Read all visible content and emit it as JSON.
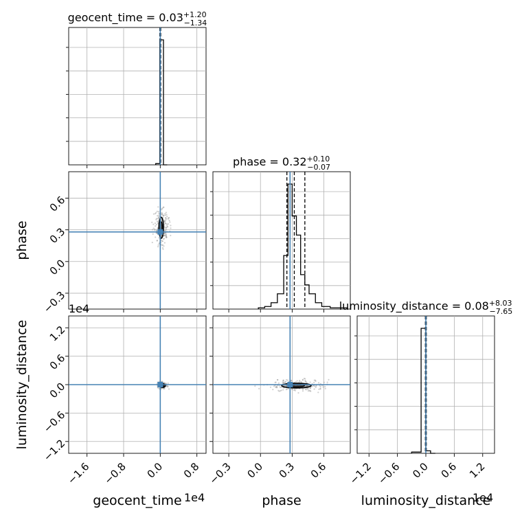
{
  "figure": {
    "type": "corner plot",
    "grid": true,
    "colors": {
      "truth": "#4682b4",
      "hist": "#000000",
      "grid": "#b0b0b0",
      "scatter": "#9a9a9a"
    }
  },
  "parameters": [
    {
      "name": "geocent_time",
      "label": "geocent_time",
      "title_value": "0.03",
      "err_plus": "+1.20",
      "err_minus": "−1.34",
      "offset": "1e4",
      "xlim": [
        -2.0,
        1.0
      ],
      "ticks": [
        "−1.6",
        "−0.8",
        "0.0",
        "0.8"
      ],
      "tick_values": [
        -1.6,
        -0.8,
        0.0,
        0.8
      ],
      "truth": 0.0
    },
    {
      "name": "phase",
      "label": "phase",
      "title_value": "0.32",
      "err_plus": "+0.10",
      "err_minus": "−0.07",
      "offset": "",
      "xlim": [
        -0.45,
        0.85
      ],
      "ticks": [
        "−0.3",
        "0.0",
        "0.3",
        "0.6"
      ],
      "tick_values": [
        -0.3,
        0.0,
        0.3,
        0.6
      ],
      "truth": 0.28
    },
    {
      "name": "luminosity_distance",
      "label": "luminosity_distance",
      "title_value": "0.08",
      "err_plus": "+8.03",
      "err_minus": "−7.65",
      "offset": "1e4",
      "xlim": [
        -1.45,
        1.45
      ],
      "ticks": [
        "−1.2",
        "−0.6",
        "0.0",
        "0.6",
        "1.2"
      ],
      "tick_values": [
        -1.2,
        -0.6,
        0.0,
        0.6,
        1.2
      ],
      "truth": 0.0
    }
  ],
  "chart_data": {
    "type": "histogram",
    "panels": [
      {
        "parameter": "geocent_time",
        "type": "histogram",
        "bin_edges": [
          -0.1,
          -0.01,
          0.07,
          0.15
        ],
        "counts": [
          0.01,
          1.0,
          0.0
        ],
        "quantile_lines": [
          -0.01,
          0.0,
          0.01
        ],
        "truth": 0.0
      },
      {
        "parameter": "phase",
        "type": "histogram",
        "bin_edges": [
          -0.02,
          0.04,
          0.1,
          0.16,
          0.22,
          0.26,
          0.3,
          0.34,
          0.38,
          0.42,
          0.46,
          0.52,
          0.58,
          0.66,
          0.74,
          0.82
        ],
        "counts": [
          0.01,
          0.02,
          0.05,
          0.12,
          0.42,
          0.98,
          0.73,
          0.58,
          0.27,
          0.19,
          0.12,
          0.05,
          0.02,
          0.01,
          0.01
        ],
        "quantile_lines": [
          0.25,
          0.32,
          0.42
        ],
        "truth": 0.28
      },
      {
        "parameter": "luminosity_distance",
        "type": "histogram",
        "bin_edges": [
          -0.3,
          -0.1,
          0.0,
          0.1,
          0.2
        ],
        "counts": [
          0.01,
          1.0,
          0.02,
          0.0
        ],
        "quantile_lines": [
          -0.01,
          0.0,
          0.01
        ],
        "truth": 0.0
      },
      {
        "x": "geocent_time",
        "y": "phase",
        "type": "2d density",
        "center": [
          0.02,
          0.32
        ],
        "contour_half_widths": [
          0.05,
          0.1
        ],
        "spread": [
          0.08,
          0.09
        ],
        "truth": [
          0.0,
          0.28
        ],
        "ylim": [
          -0.45,
          0.85
        ],
        "yticks": [
          "−0.3",
          "0.0",
          "0.3",
          "0.6"
        ],
        "ytick_values": [
          -0.3,
          0.0,
          0.3,
          0.6
        ]
      },
      {
        "x": "geocent_time",
        "y": "luminosity_distance",
        "type": "2d density",
        "center": [
          0.05,
          -0.02
        ],
        "contour_half_widths": [
          0.06,
          0.04
        ],
        "spread": [
          0.05,
          0.03
        ],
        "truth": [
          0.0,
          0.0
        ],
        "ylim": [
          -1.45,
          1.45
        ],
        "yticks": [
          "−1.2",
          "−0.6",
          "0.0",
          "0.6",
          "1.2"
        ],
        "ytick_values": [
          -1.2,
          -0.6,
          0.0,
          0.6,
          1.2
        ]
      },
      {
        "x": "phase",
        "y": "luminosity_distance",
        "type": "2d density",
        "center": [
          0.34,
          -0.02
        ],
        "contour_half_widths": [
          0.14,
          0.05
        ],
        "spread": [
          0.12,
          0.06
        ],
        "truth": [
          0.28,
          0.0
        ],
        "ylim": [
          -1.45,
          1.45
        ]
      }
    ]
  }
}
